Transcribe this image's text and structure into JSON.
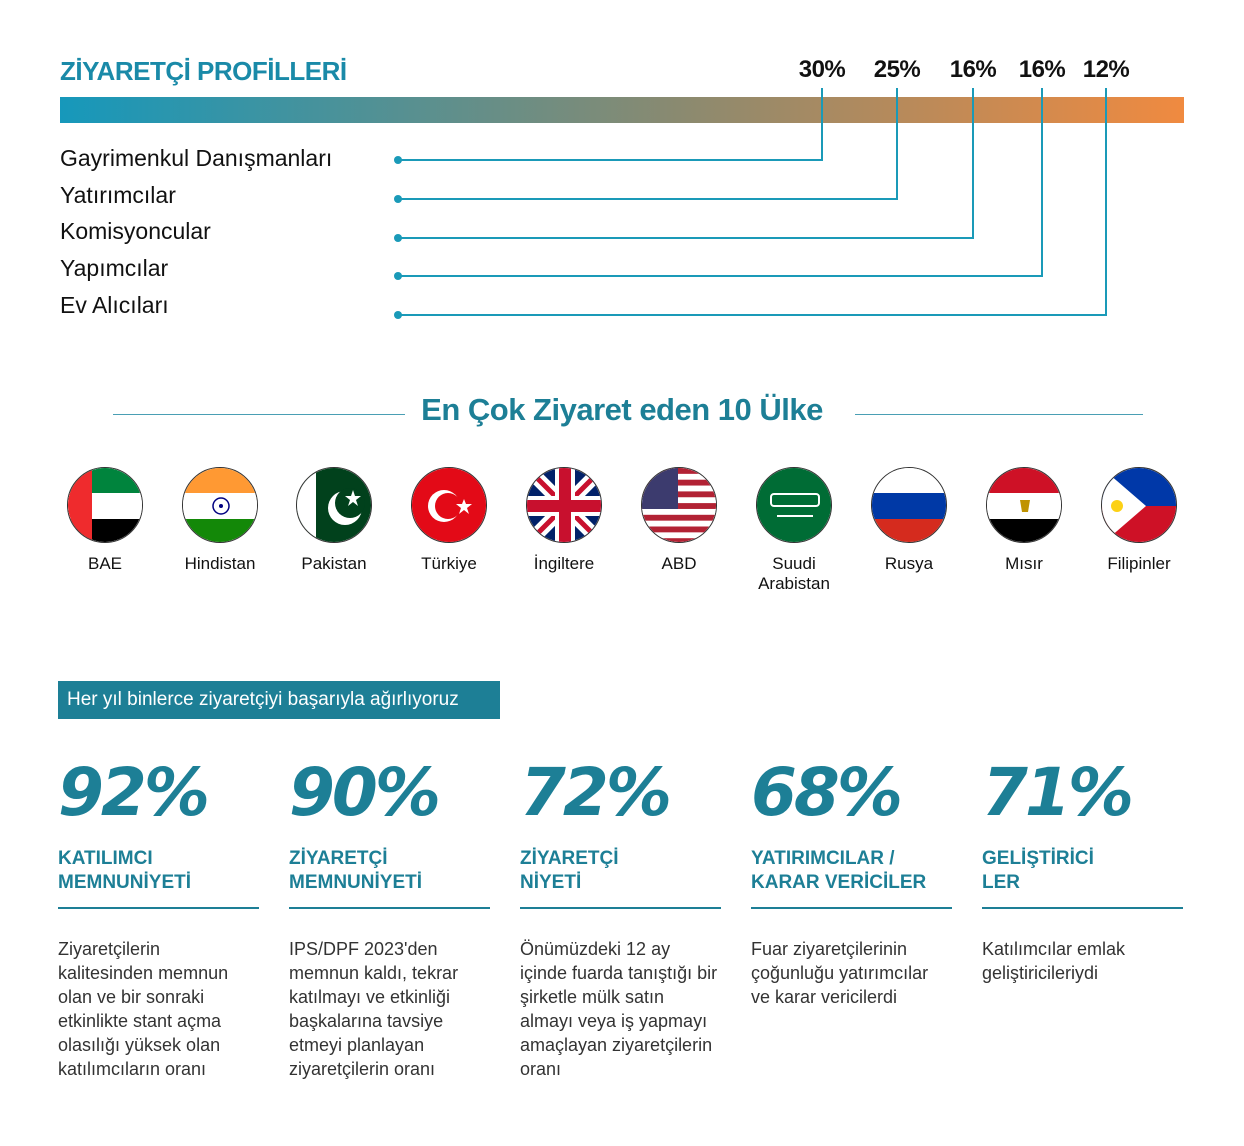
{
  "profiles": {
    "title": "ZİYARETÇİ PROFİLLERİ",
    "items": [
      {
        "label": "Gayrimenkul Danışmanları",
        "value": "30%"
      },
      {
        "label": "Yatırımcılar",
        "value": "25%"
      },
      {
        "label": "Komisyoncular",
        "value": "16%"
      },
      {
        "label": "Yapımcılar",
        "value": "16%"
      },
      {
        "label": "Ev Alıcıları",
        "value": "12%"
      }
    ],
    "colors": {
      "gradient_start": "#1698bb",
      "gradient_end": "#f08a40",
      "line": "#1a9ab8"
    }
  },
  "countries": {
    "title": "En Çok Ziyaret eden 10 Ülke",
    "items": [
      {
        "name": "BAE",
        "flag": "uae-flag"
      },
      {
        "name": "Hindistan",
        "flag": "india-flag"
      },
      {
        "name": "Pakistan",
        "flag": "pakistan-flag"
      },
      {
        "name": "Türkiye",
        "flag": "turkey-flag"
      },
      {
        "name": "İngiltere",
        "flag": "uk-flag"
      },
      {
        "name": "ABD",
        "flag": "usa-flag"
      },
      {
        "name": "Suudi Arabistan",
        "flag": "saudi-flag"
      },
      {
        "name": "Rusya",
        "flag": "russia-flag"
      },
      {
        "name": "Mısır",
        "flag": "egypt-flag"
      },
      {
        "name": "Filipinler",
        "flag": "philippines-flag"
      }
    ]
  },
  "stats": {
    "banner": "Her yıl binlerce ziyaretçiyi başarıyla ağırlıyoruz",
    "accent": "#1d7f96",
    "items": [
      {
        "value": "92%",
        "label1": "KATILIMCI",
        "label2": "MEMNUNİYETİ",
        "desc": "Ziyaretçilerin kalitesinden memnun olan ve bir sonraki etkinlikte stant açma olasılığı yüksek olan katılımcıların oranı"
      },
      {
        "value": "90%",
        "label1": "ZİYARETÇİ",
        "label2": "MEMNUNİYETİ",
        "desc": "IPS/DPF 2023'den memnun kaldı, tekrar katılmayı ve etkinliği başkalarına tavsiye etmeyi planlayan ziyaretçilerin oranı"
      },
      {
        "value": "72%",
        "label1": "ZİYARETÇİ",
        "label2": "NİYETİ",
        "desc": "Önümüzdeki 12 ay içinde fuarda tanıştığı bir şirketle mülk satın almayı veya iş yapmayı amaçlayan ziyaretçilerin oranı"
      },
      {
        "value": "68%",
        "label1": "YATIRIMCILAR /",
        "label2": "KARAR VERİCİLER",
        "desc": "Fuar ziyaretçilerinin çoğunluğu yatırımcılar ve karar vericilerdi"
      },
      {
        "value": "71%",
        "label1": "GELİŞTİRİCİ",
        "label2": "LER",
        "desc": "Katılımcılar emlak geliştiricileriydi"
      }
    ]
  }
}
